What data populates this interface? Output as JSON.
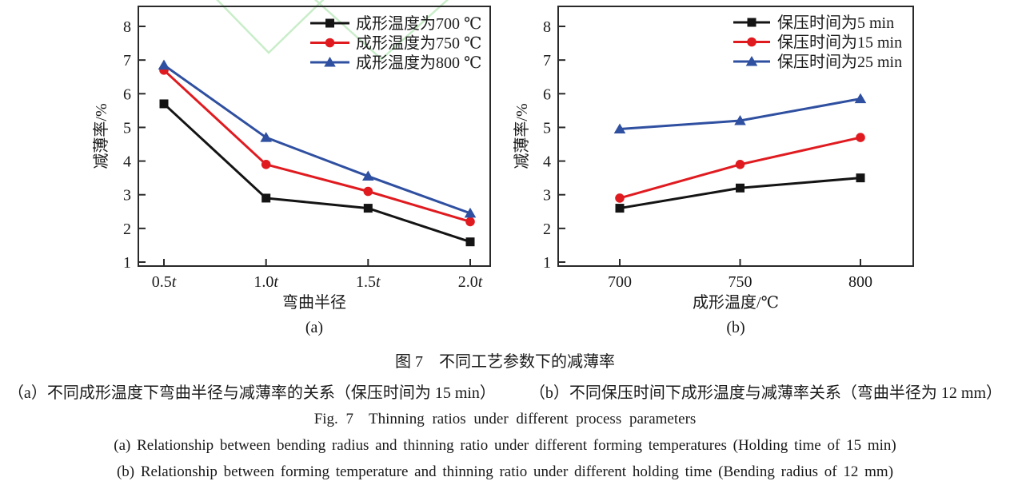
{
  "figure": {
    "panel_labels": [
      "(a)",
      "(b)"
    ]
  },
  "captions": {
    "title_zh": "图 7　不同工艺参数下的减薄率",
    "sub_a_zh": "（a）不同成形温度下弯曲半径与减薄率的关系（保压时间为 15 min）",
    "sub_b_zh": "（b）不同保压时间下成形温度与减薄率关系（弯曲半径为 12 mm）",
    "title_en": "Fig. 7　Thinning ratios under different process parameters",
    "sub_a_en": "(a) Relationship between bending radius and thinning ratio under different forming temperatures (Holding time of 15 min)",
    "sub_b_en": "(b) Relationship between forming temperature and thinning ratio under different holding time (Bending radius of 12 mm)"
  },
  "colors": {
    "black_series": "#141414",
    "red_series": "#e01b20",
    "blue_series": "#2f4fa0",
    "axis": "#2a2a2a",
    "text": "#1a1a1a",
    "watermark_green": "#c9edc9"
  },
  "chart_data": [
    {
      "type": "line",
      "panel_label": "(a)",
      "xlabel": "弯曲半径",
      "ylabel": "减薄率/%",
      "categories": [
        "0.5t",
        "1.0t",
        "1.5t",
        "2.0t"
      ],
      "yticks": [
        1,
        2,
        3,
        4,
        5,
        6,
        7,
        8
      ],
      "ylim": [
        1,
        8
      ],
      "grid": false,
      "legend_position": "top-right",
      "series": [
        {
          "name": "成形温度为700 ℃",
          "marker": "square",
          "color": "#141414",
          "values": [
            5.7,
            2.9,
            2.6,
            1.6
          ]
        },
        {
          "name": "成形温度为750 ℃",
          "marker": "circle",
          "color": "#e01b20",
          "values": [
            6.7,
            3.9,
            3.1,
            2.2
          ]
        },
        {
          "name": "成形温度为800 ℃",
          "marker": "triangle",
          "color": "#2f4fa0",
          "values": [
            6.85,
            4.7,
            3.55,
            2.45
          ]
        }
      ]
    },
    {
      "type": "line",
      "panel_label": "(b)",
      "xlabel": "成形温度/℃",
      "ylabel": "减薄率/%",
      "categories": [
        "700",
        "750",
        "800"
      ],
      "yticks": [
        1,
        2,
        3,
        4,
        5,
        6,
        7,
        8
      ],
      "ylim": [
        1,
        8
      ],
      "grid": false,
      "legend_position": "top-right",
      "series": [
        {
          "name": "保压时间为5 min",
          "marker": "square",
          "color": "#141414",
          "values": [
            2.6,
            3.2,
            3.5
          ]
        },
        {
          "name": "保压时间为15 min",
          "marker": "circle",
          "color": "#e01b20",
          "values": [
            2.9,
            3.9,
            4.7
          ]
        },
        {
          "name": "保压时间为25 min",
          "marker": "triangle",
          "color": "#2f4fa0",
          "values": [
            4.95,
            5.2,
            5.85
          ]
        }
      ]
    }
  ]
}
